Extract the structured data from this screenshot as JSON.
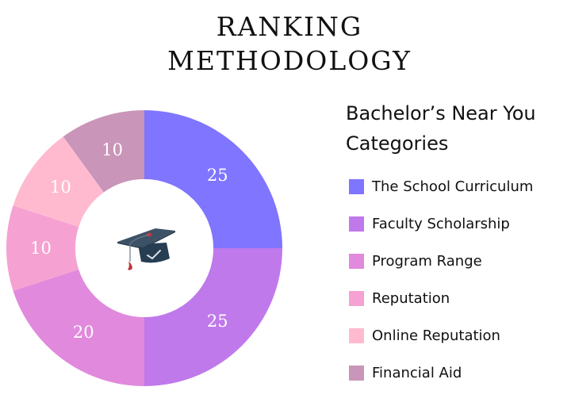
{
  "title": {
    "line1": "RANKING",
    "line2": "METHODOLOGY"
  },
  "legend": {
    "title_line1": "Bachelor’s Near You",
    "title_line2": "Categories",
    "items": [
      {
        "label": "The School Curriculum",
        "color": "#7f75ff"
      },
      {
        "label": "Faculty Scholarship",
        "color": "#bf79eb"
      },
      {
        "label": "Program Range",
        "color": "#e189dc"
      },
      {
        "label": "Reputation",
        "color": "#f5a1d2"
      },
      {
        "label": "Online Reputation",
        "color": "#ffbad0"
      },
      {
        "label": "Financial Aid",
        "color": "#c995b8"
      }
    ]
  },
  "center_icon": "graduation-cap-icon",
  "chart_data": {
    "type": "pie",
    "subtype": "donut",
    "title": "RANKING METHODOLOGY",
    "legend_title": "Bachelor’s Near You Categories",
    "legend_position": "right",
    "start_angle": "12 o'clock, clockwise",
    "categories": [
      "The School Curriculum",
      "Faculty Scholarship",
      "Program Range",
      "Reputation",
      "Online Reputation",
      "Financial Aid"
    ],
    "values": [
      25,
      25,
      20,
      10,
      10,
      10
    ],
    "data_labels": [
      "25",
      "25",
      "20",
      "10",
      "10",
      "10"
    ],
    "colors": [
      "#7f75ff",
      "#bf79eb",
      "#e189dc",
      "#f5a1d2",
      "#ffbad0",
      "#c995b8"
    ]
  }
}
